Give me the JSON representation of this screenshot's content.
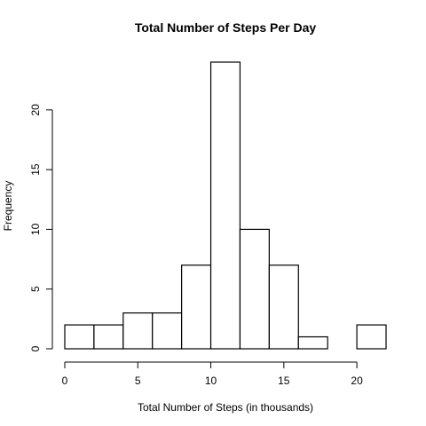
{
  "chart_data": {
    "type": "bar",
    "title": "Total Number of Steps Per Day",
    "xlabel": "Total Number of Steps (in thousands)",
    "ylabel": "Frequency",
    "bins": [
      {
        "from": 0,
        "to": 2,
        "count": 2
      },
      {
        "from": 2,
        "to": 4,
        "count": 2
      },
      {
        "from": 4,
        "to": 6,
        "count": 3
      },
      {
        "from": 6,
        "to": 8,
        "count": 3
      },
      {
        "from": 8,
        "to": 10,
        "count": 7
      },
      {
        "from": 10,
        "to": 12,
        "count": 24
      },
      {
        "from": 12,
        "to": 14,
        "count": 10
      },
      {
        "from": 14,
        "to": 16,
        "count": 7
      },
      {
        "from": 16,
        "to": 18,
        "count": 1
      },
      {
        "from": 18,
        "to": 20,
        "count": 0
      },
      {
        "from": 20,
        "to": 22,
        "count": 2
      }
    ],
    "x_ticks": [
      0,
      5,
      10,
      15,
      20
    ],
    "y_ticks": [
      0,
      5,
      10,
      15,
      20
    ],
    "xlim": [
      0,
      22
    ],
    "ylim": [
      0,
      24
    ],
    "grid": false,
    "bar_fill": "#ffffff",
    "bar_stroke": "#000000"
  }
}
